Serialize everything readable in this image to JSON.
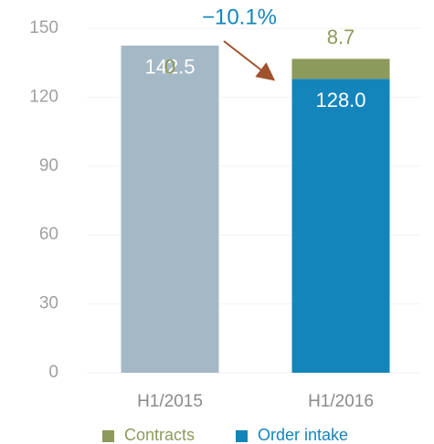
{
  "chart_data": {
    "type": "stacked_bar",
    "categories": [
      "H1/2015",
      "H1/2016"
    ],
    "series": [
      {
        "name": "Order intake",
        "color": "#1485bb",
        "point_colors": [
          "#a5b8c6",
          "#1485bb"
        ],
        "values": [
          142.5,
          128.0
        ],
        "value_labels": [
          "142.5",
          "128.0"
        ],
        "label_color": "#ffffff"
      },
      {
        "name": "Contracts",
        "color": "#8c9a5b",
        "values": [
          0,
          8.7
        ],
        "label_color": "#8c9a5b"
      }
    ],
    "annotation": {
      "text": "−10.1%",
      "color": "#1485bb",
      "arrow_color": "#a0522d"
    },
    "ylim": [
      0,
      150
    ],
    "yticks": [
      0,
      30,
      60,
      90,
      120,
      150
    ],
    "grid": true
  }
}
